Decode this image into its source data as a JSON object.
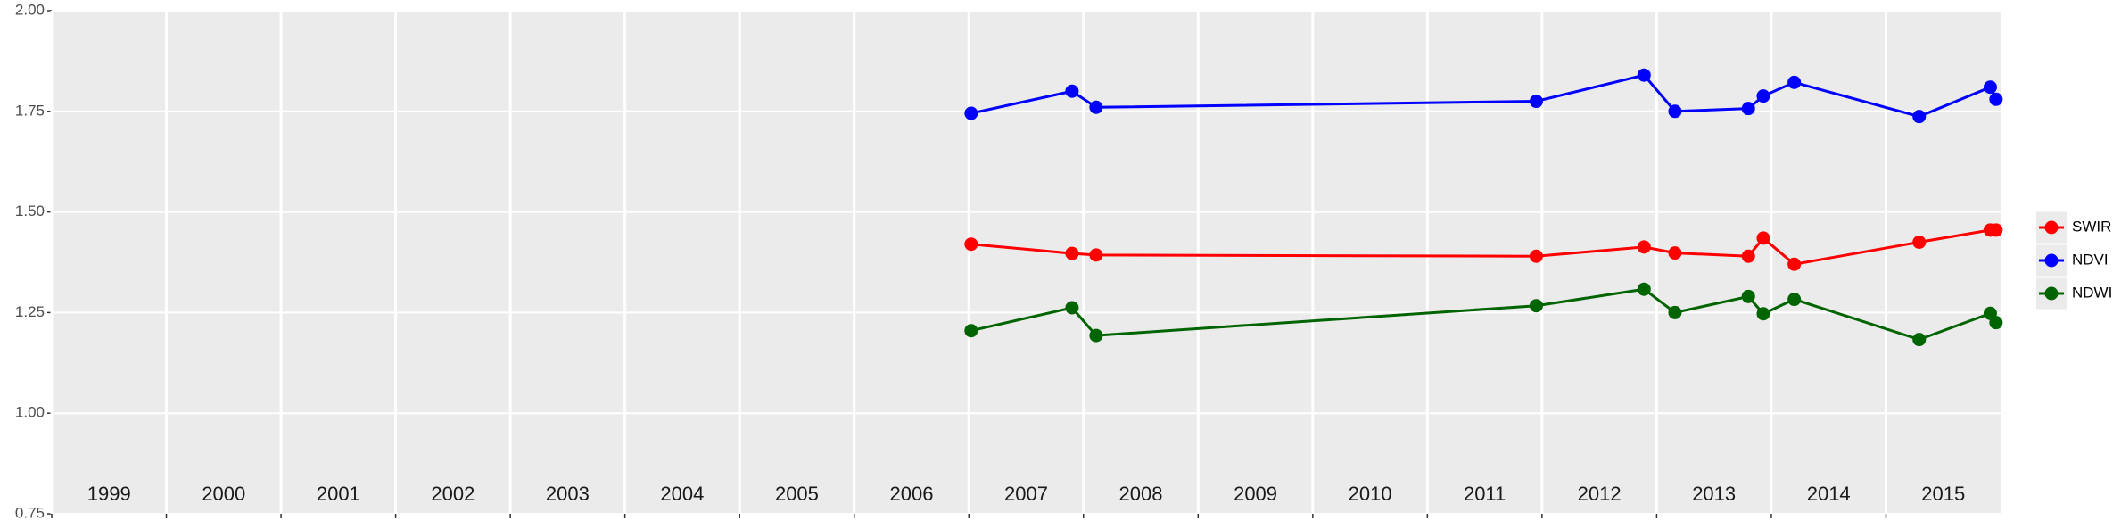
{
  "chart_data": {
    "type": "line",
    "xlim": [
      1999,
      2016
    ],
    "xticks": [
      {
        "value": 1999,
        "label": "1999"
      },
      {
        "value": 2000,
        "label": "2000"
      },
      {
        "value": 2001,
        "label": "2001"
      },
      {
        "value": 2002,
        "label": "2002"
      },
      {
        "value": 2003,
        "label": "2003"
      },
      {
        "value": 2004,
        "label": "2004"
      },
      {
        "value": 2005,
        "label": "2005"
      },
      {
        "value": 2006,
        "label": "2006"
      },
      {
        "value": 2007,
        "label": "2007"
      },
      {
        "value": 2008,
        "label": "2008"
      },
      {
        "value": 2009,
        "label": "2009"
      },
      {
        "value": 2010,
        "label": "2010"
      },
      {
        "value": 2011,
        "label": "2011"
      },
      {
        "value": 2012,
        "label": "2012"
      },
      {
        "value": 2013,
        "label": "2013"
      },
      {
        "value": 2014,
        "label": "2014"
      },
      {
        "value": 2015,
        "label": "2015"
      }
    ],
    "ylim": [
      0.75,
      2.0
    ],
    "yticks": [
      0.75,
      {
        "value": 1.0,
        "label": "1.00"
      },
      1.25,
      {
        "value": 1.5,
        "label": "1.50"
      },
      1.75,
      {
        "value": 2.0,
        "label": "2.00"
      }
    ],
    "grid": true,
    "legend": "right",
    "x": [
      2007.02,
      2007.9,
      2008.11,
      2011.95,
      2012.89,
      2013.16,
      2013.8,
      2013.93,
      2014.2,
      2015.29,
      2015.91,
      2015.96
    ],
    "series": [
      {
        "name": "SWIR",
        "color": "#ff0000",
        "values": [
          1.42,
          1.397,
          1.393,
          1.39,
          1.413,
          1.398,
          1.39,
          1.435,
          1.37,
          1.425,
          1.455,
          1.455
        ]
      },
      {
        "name": "NDVI",
        "color": "#0000ff",
        "values": [
          1.745,
          1.8,
          1.76,
          1.775,
          1.84,
          1.75,
          1.757,
          1.788,
          1.822,
          1.737,
          1.81,
          1.78
        ]
      },
      {
        "name": "NDWI",
        "color": "#006400",
        "values": [
          1.205,
          1.262,
          1.193,
          1.267,
          1.308,
          1.25,
          1.29,
          1.247,
          1.283,
          1.183,
          1.248,
          1.225
        ]
      }
    ]
  }
}
